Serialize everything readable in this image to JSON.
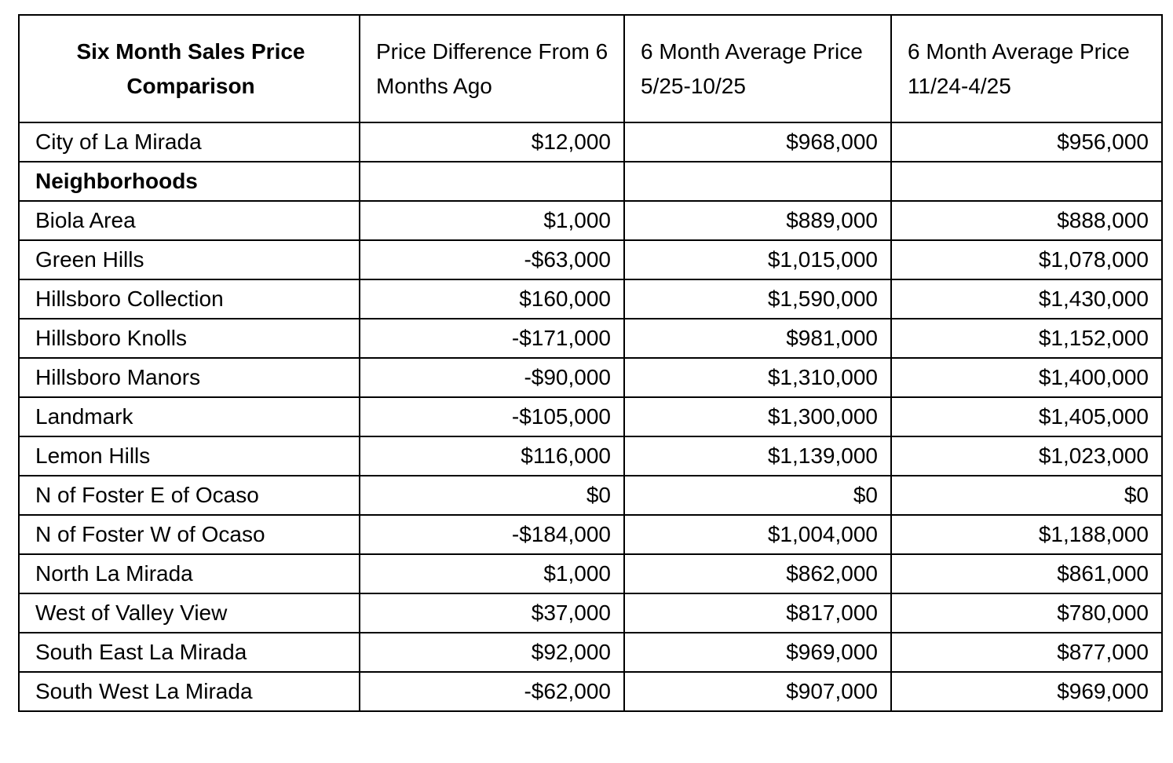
{
  "table": {
    "header": [
      "Six Month Sales Price Comparison",
      "Price Difference From 6 Months Ago",
      "6 Month Average Price 5/25-10/25",
      "6 Month Average Price 11/24-4/25"
    ],
    "rows": [
      [
        "City of La Mirada",
        "$12,000",
        "$968,000",
        "$956,000"
      ],
      [
        "Neighborhoods"
      ],
      [
        "Biola Area",
        "$1,000",
        "$889,000",
        "$888,000"
      ],
      [
        "Green Hills",
        "-$63,000",
        "$1,015,000",
        "$1,078,000"
      ],
      [
        "Hillsboro Collection",
        "$160,000",
        "$1,590,000",
        "$1,430,000"
      ],
      [
        "Hillsboro Knolls",
        "-$171,000",
        "$981,000",
        "$1,152,000"
      ],
      [
        "Hillsboro Manors",
        "-$90,000",
        "$1,310,000",
        "$1,400,000"
      ],
      [
        "Landmark",
        "-$105,000",
        "$1,300,000",
        "$1,405,000"
      ],
      [
        "Lemon Hills",
        "$116,000",
        "$1,139,000",
        "$1,023,000"
      ],
      [
        "N of Foster E of Ocaso",
        "$0",
        "$0",
        "$0"
      ],
      [
        "N of Foster W of Ocaso",
        "-$184,000",
        "$1,004,000",
        "$1,188,000"
      ],
      [
        "North La Mirada",
        "$1,000",
        "$862,000",
        "$861,000"
      ],
      [
        "West of Valley View",
        "$37,000",
        "$817,000",
        "$780,000"
      ],
      [
        "South East La Mirada",
        "$92,000",
        "$969,000",
        "$877,000"
      ],
      [
        "South West La Mirada",
        "-$62,000",
        "$907,000",
        "$969,000"
      ]
    ]
  }
}
